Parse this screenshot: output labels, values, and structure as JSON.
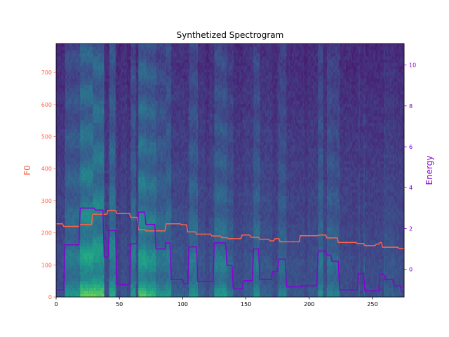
{
  "chart_data": {
    "type": "line",
    "title": "Synthetized Spectrogram",
    "xlabel": "",
    "ylabel": "F0",
    "y2label": "Energy",
    "xlim": [
      0,
      275
    ],
    "ylim": [
      0,
      790
    ],
    "y2lim": [
      -1.35,
      11.05
    ],
    "xticks": [
      0,
      50,
      100,
      150,
      200,
      250
    ],
    "yticks": [
      0,
      100,
      200,
      300,
      400,
      500,
      600,
      700
    ],
    "y2ticks": [
      0,
      2,
      4,
      6,
      8,
      10
    ],
    "grid": false,
    "background": "spectrogram heatmap (viridis), 80 mel bins x 275 frames",
    "colors": {
      "f0": "#ff6347",
      "energy": "#8a00d6",
      "axis_left": "#ff6347",
      "axis_right": "#8a00d6"
    },
    "series": [
      {
        "name": "F0",
        "axis": "left",
        "x": [
          0,
          5,
          6,
          18,
          19,
          28,
          29,
          40,
          41,
          47,
          48,
          58,
          59,
          64,
          65,
          70,
          71,
          86,
          87,
          98,
          99,
          103,
          104,
          110,
          111,
          122,
          123,
          130,
          131,
          135,
          136,
          146,
          147,
          153,
          154,
          160,
          161,
          168,
          169,
          172,
          173,
          176,
          177,
          192,
          193,
          207,
          208,
          213,
          214,
          222,
          223,
          237,
          238,
          243,
          244,
          252,
          253,
          255,
          256,
          257,
          258,
          270,
          271,
          275
        ],
        "values": [
          228,
          228,
          220,
          220,
          226,
          226,
          258,
          258,
          270,
          270,
          260,
          260,
          248,
          248,
          210,
          210,
          206,
          206,
          228,
          228,
          225,
          225,
          203,
          203,
          196,
          196,
          190,
          190,
          185,
          185,
          182,
          182,
          193,
          193,
          186,
          186,
          180,
          180,
          175,
          175,
          182,
          182,
          172,
          172,
          191,
          191,
          193,
          193,
          184,
          184,
          170,
          170,
          167,
          167,
          160,
          160,
          165,
          165,
          170,
          170,
          155,
          155,
          151,
          151
        ]
      },
      {
        "name": "Energy",
        "axis": "right",
        "x": [
          0,
          6,
          7,
          18,
          19,
          30,
          31,
          37,
          38,
          41,
          42,
          47,
          48,
          58,
          59,
          64,
          65,
          70,
          71,
          78,
          79,
          86,
          87,
          90,
          91,
          100,
          101,
          104,
          105,
          111,
          112,
          124,
          125,
          134,
          135,
          139,
          140,
          147,
          148,
          155,
          156,
          160,
          161,
          170,
          171,
          175,
          176,
          181,
          182,
          193,
          194,
          206,
          207,
          213,
          214,
          217,
          218,
          223,
          224,
          238,
          239,
          243,
          244,
          255,
          256,
          259,
          260,
          266,
          267,
          272,
          273,
          275
        ],
        "values": [
          -1.0,
          -1.0,
          1.2,
          1.2,
          3.0,
          3.0,
          2.9,
          2.9,
          0.6,
          0.6,
          1.9,
          1.9,
          -0.75,
          -0.75,
          1.25,
          1.25,
          2.8,
          2.8,
          2.2,
          2.2,
          1.0,
          1.0,
          1.3,
          1.3,
          -0.5,
          -0.5,
          -0.7,
          -0.7,
          1.1,
          1.1,
          -0.6,
          -0.6,
          1.3,
          1.3,
          0.2,
          0.2,
          -0.95,
          -0.95,
          -0.55,
          -0.55,
          1.0,
          1.0,
          -0.5,
          -0.5,
          -0.1,
          -0.1,
          0.5,
          0.5,
          -0.85,
          -0.85,
          -0.8,
          -0.8,
          0.9,
          0.9,
          0.7,
          0.7,
          0.4,
          0.4,
          -1.0,
          -1.0,
          -0.2,
          -0.2,
          -1.05,
          -1.05,
          -0.25,
          -0.25,
          -0.5,
          -0.5,
          -0.8,
          -0.8,
          -1.1,
          -1.1
        ]
      }
    ]
  }
}
